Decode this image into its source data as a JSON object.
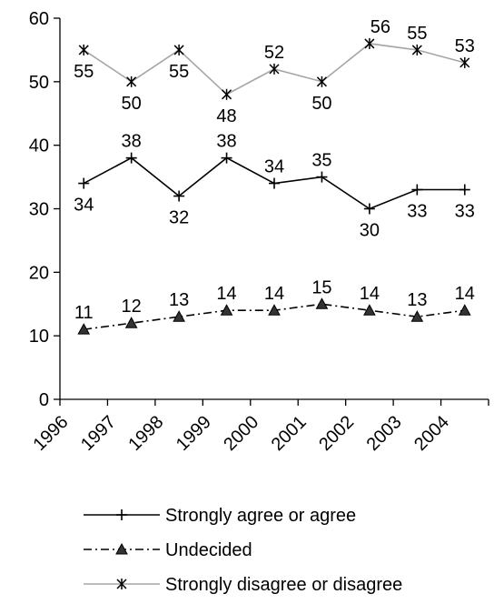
{
  "chart_data": {
    "type": "line",
    "categories": [
      "1996",
      "1997",
      "1998",
      "1999",
      "2000",
      "2001",
      "2002",
      "2003",
      "2004"
    ],
    "series": [
      {
        "name": "Strongly agree or agree",
        "values": [
          34,
          38,
          32,
          38,
          34,
          35,
          30,
          33,
          33
        ],
        "color": "#000000",
        "marker": "plus",
        "dash": "solid"
      },
      {
        "name": "Undecided",
        "values": [
          11,
          12,
          13,
          14,
          14,
          15,
          14,
          13,
          14
        ],
        "color": "#000000",
        "marker": "triangle",
        "dash": "dashdot"
      },
      {
        "name": "Strongly disagree or disagree",
        "values": [
          55,
          50,
          55,
          48,
          52,
          50,
          56,
          55,
          53
        ],
        "color": "#a6a6a6",
        "marker": "star",
        "dash": "solid"
      }
    ],
    "y_ticks": [
      "0",
      "10",
      "20",
      "30",
      "40",
      "50",
      "60"
    ],
    "ylim": [
      0,
      60
    ],
    "title": "",
    "xlabel": "",
    "ylabel": "",
    "grid": false,
    "legend_position": "bottom"
  }
}
